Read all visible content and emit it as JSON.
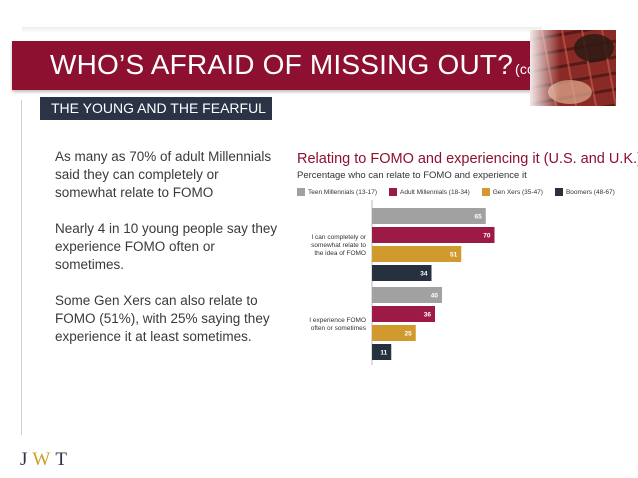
{
  "header": {
    "title": "WHO’S AFRAID OF MISSING OUT?",
    "title_suffix": "(cont’d.)"
  },
  "section_label": "THE YOUNG AND THE FEARFUL",
  "body": {
    "paragraphs": [
      "As many as 70% of adult Millennials said they can completely or somewhat relate to FOMO",
      "Nearly 4 in 10 young people say they experience FOMO often or sometimes.",
      "Some Gen Xers can also relate to FOMO (51%), with 25% saying they experience it at least sometimes."
    ]
  },
  "logo": {
    "j": "J",
    "w": "W",
    "t": "T"
  },
  "colors": {
    "banner": "#8e1030",
    "section_label_bg": "#2a3446"
  },
  "chart_data": {
    "type": "bar",
    "orientation": "horizontal",
    "title": "Relating to FOMO and experiencing it (U.S. and U.K.)",
    "subtitle": "Percentage who can relate to FOMO and experience it",
    "legend_position": "top",
    "categories": [
      "I can completely or somewhat relate to the idea of FOMO",
      "I experience FOMO often or sometimes"
    ],
    "category_lines": [
      [
        "I can completely or",
        "somewhat relate to",
        "the idea of FOMO"
      ],
      [
        "I experience FOMO",
        "often or sometimes"
      ]
    ],
    "series": [
      {
        "name": "Teen Millennials (13-17)",
        "color": "#a1a1a1",
        "values": [
          65,
          40
        ]
      },
      {
        "name": "Adult Millennials (18-34)",
        "color": "#9e1a46",
        "values": [
          70,
          36
        ]
      },
      {
        "name": "Gen Xers (35-47)",
        "color": "#d09a2e",
        "values": [
          51,
          25
        ]
      },
      {
        "name": "Boomers (48-67)",
        "color": "#27303f",
        "values": [
          34,
          11
        ]
      }
    ],
    "xlim": [
      0,
      100
    ],
    "grid": false
  }
}
